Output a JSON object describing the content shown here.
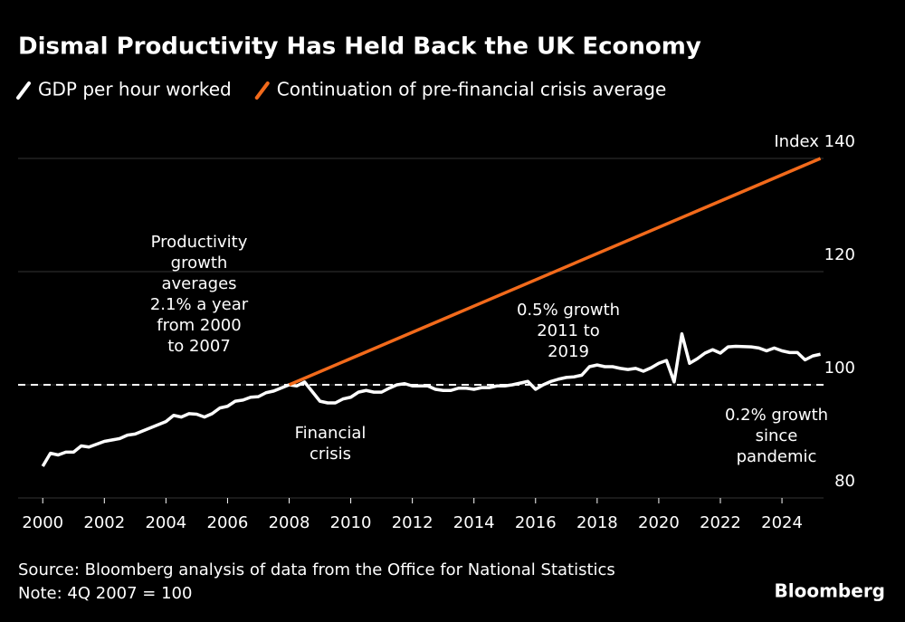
{
  "chart_data": {
    "type": "line",
    "title": "Dismal Productivity Has Held Back the UK Economy",
    "series": [
      {
        "name": "GDP per hour worked",
        "color": "#ffffff",
        "x": [
          2000,
          2000.25,
          2000.5,
          2000.75,
          2001,
          2001.25,
          2001.5,
          2001.75,
          2002,
          2002.5,
          2002.75,
          2003,
          2003.5,
          2004,
          2004.25,
          2004.5,
          2004.75,
          2005,
          2005.25,
          2005.5,
          2005.75,
          2006,
          2006.25,
          2006.5,
          2006.75,
          2007,
          2007.25,
          2007.5,
          2008,
          2008.25,
          2008.5,
          2009,
          2009.25,
          2009.5,
          2009.75,
          2010,
          2010.25,
          2010.5,
          2010.75,
          2011,
          2011.25,
          2011.5,
          2011.75,
          2012,
          2012.5,
          2012.75,
          2013,
          2013.25,
          2013.5,
          2013.75,
          2014,
          2014.25,
          2014.5,
          2014.75,
          2015,
          2015.25,
          2015.5,
          2015.75,
          2016,
          2016.25,
          2016.5,
          2016.75,
          2017,
          2017.25,
          2017.5,
          2017.75,
          2018,
          2018.25,
          2018.5,
          2018.75,
          2019,
          2019.25,
          2019.5,
          2019.75,
          2020,
          2020.25,
          2020.5,
          2020.75,
          2021,
          2021.25,
          2021.5,
          2021.75,
          2022,
          2022.25,
          2022.5,
          2023,
          2023.25,
          2023.5,
          2023.75,
          2024,
          2024.25,
          2024.5,
          2024.75,
          2025,
          2025.25
        ],
        "values": [
          85.6,
          87.9,
          87.6,
          88.1,
          88.1,
          89.2,
          89.0,
          89.5,
          90.0,
          90.5,
          91.1,
          91.3,
          92.4,
          93.5,
          94.6,
          94.3,
          94.9,
          94.8,
          94.3,
          94.9,
          95.9,
          96.2,
          97.1,
          97.3,
          97.8,
          97.9,
          98.6,
          98.9,
          100,
          99.8,
          100.5,
          97.1,
          96.8,
          96.8,
          97.5,
          97.8,
          98.7,
          99.0,
          98.7,
          98.7,
          99.4,
          100,
          100.2,
          99.8,
          99.8,
          99.2,
          99.0,
          99.0,
          99.4,
          99.4,
          99.2,
          99.5,
          99.5,
          99.8,
          99.8,
          100,
          100.3,
          100.6,
          99.2,
          100,
          100.6,
          101,
          101.3,
          101.4,
          101.7,
          103.2,
          103.5,
          103.2,
          103.2,
          102.9,
          102.7,
          102.9,
          102.4,
          103.0,
          103.8,
          104.3,
          100.5,
          109.0,
          103.8,
          104.6,
          105.6,
          106.2,
          105.6,
          106.7,
          106.8,
          106.7,
          106.5,
          106.0,
          106.5,
          106.0,
          105.7,
          105.7,
          104.4,
          105.1,
          105.4
        ]
      },
      {
        "name": "Continuation of pre-financial crisis average",
        "color": "#f26a1b",
        "x": [
          2008,
          2025.25
        ],
        "values": [
          100,
          140
        ]
      }
    ],
    "xlim": [
      1999.2,
      2025.35
    ],
    "xticks": [
      2000,
      2002,
      2004,
      2006,
      2008,
      2010,
      2012,
      2014,
      2016,
      2018,
      2020,
      2022,
      2024
    ],
    "ylim": [
      80,
      140
    ],
    "yticks": [
      80,
      100,
      120,
      {
        "value": 140,
        "label": "Index 140"
      }
    ],
    "grid": true,
    "reference_line": 100,
    "annotations": [
      [
        "Productivity",
        "growth",
        "averages",
        "2.1% a year",
        "from 2000",
        "to 2007"
      ],
      [
        "0.5% growth",
        "2011 to",
        "2019"
      ],
      [
        "Financial",
        "crisis"
      ],
      [
        "0.2% growth",
        "since",
        "pandemic"
      ]
    ],
    "source": "Source: Bloomberg analysis of data from the Office for National Statistics",
    "note": "Note: 4Q 2007 = 100",
    "brand": "Bloomberg"
  }
}
